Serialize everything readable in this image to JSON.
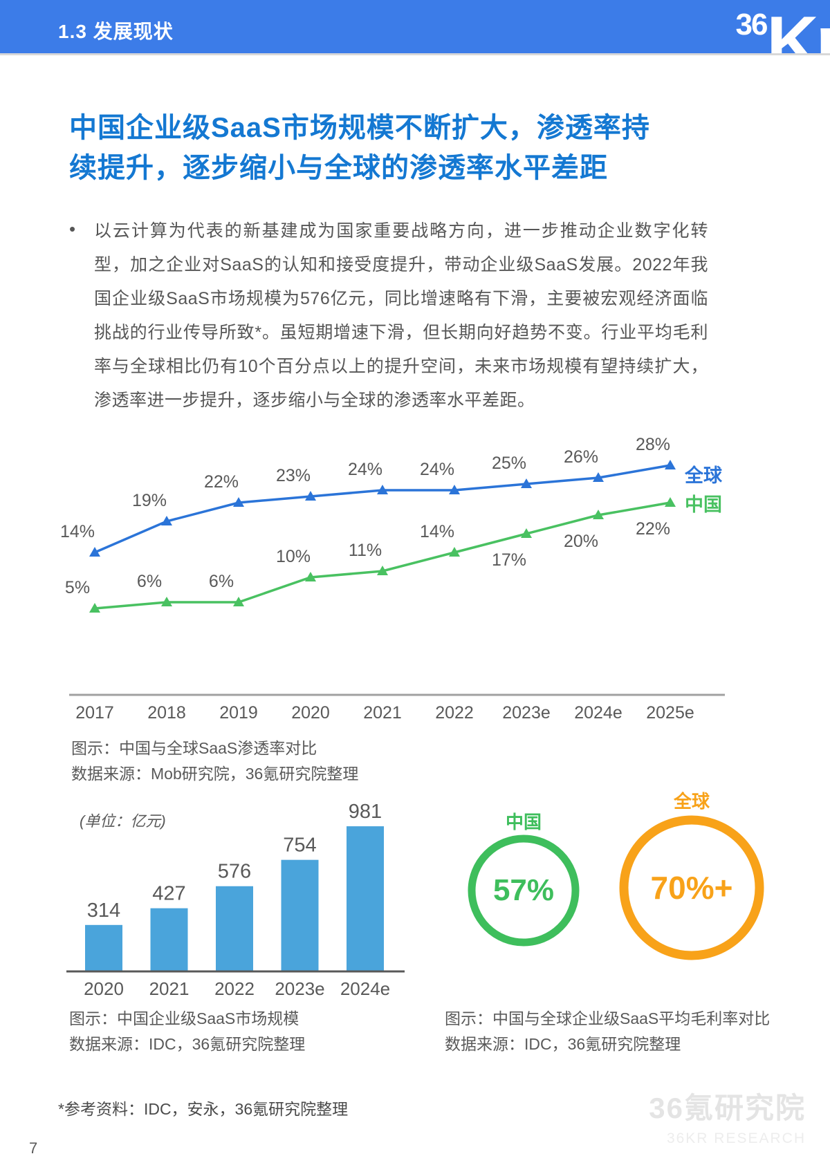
{
  "header": {
    "section_label": "1.3 发展现状",
    "logo_36": "36",
    "logo_kr": "Kr",
    "bg_color": "#3C7CE8"
  },
  "title_lines": [
    "中国企业级SaaS市场规模不断扩大，渗透率持",
    "续提升，逐步缩小与全球的渗透率水平差距"
  ],
  "bullet": {
    "marker": "•",
    "text": "以云计算为代表的新基建成为国家重要战略方向，进一步推动企业数字化转型，加之企业对SaaS的认知和接受度提升，带动企业级SaaS发展。2022年我国企业级SaaS市场规模为576亿元，同比增速略有下滑，主要被宏观经济面临挑战的行业传导所致*。虽短期增速下滑，但长期向好趋势不变。行业平均毛利率与全球相比仍有10个百分点以上的提升空间，未来市场规模有望持续扩大，渗透率进一步提升，逐步缩小与全球的渗透率水平差距。"
  },
  "chart_data": [
    {
      "type": "line",
      "title": "中国与全球SaaS渗透率对比",
      "categories": [
        "2017",
        "2018",
        "2019",
        "2020",
        "2021",
        "2022",
        "2023e",
        "2024e",
        "2025e"
      ],
      "series": [
        {
          "name": "全球",
          "color": "#2B74D8",
          "values": [
            14,
            19,
            22,
            23,
            24,
            24,
            25,
            26,
            28
          ]
        },
        {
          "name": "中国",
          "color": "#49C161",
          "values": [
            5,
            6,
            6,
            10,
            11,
            14,
            17,
            20,
            22
          ]
        }
      ],
      "unit": "%",
      "ylim": [
        0,
        30
      ],
      "grid": false,
      "legend_position": "right",
      "caption": "图示：中国与全球SaaS渗透率对比",
      "source": "数据来源：Mob研究院，36氪研究院整理"
    },
    {
      "type": "bar",
      "title": "中国企业级SaaS市场规模",
      "unit_label": "(单位：亿元)",
      "categories": [
        "2020",
        "2021",
        "2022",
        "2023e",
        "2024e"
      ],
      "values": [
        314,
        427,
        576,
        754,
        981
      ],
      "color": "#4AA4DB",
      "ylim": [
        0,
        1100
      ],
      "grid": false,
      "caption": "图示：中国企业级SaaS市场规模",
      "source": "数据来源：IDC，36氪研究院整理"
    },
    {
      "type": "donut",
      "title": "中国与全球企业级SaaS平均毛利率对比",
      "items": [
        {
          "label": "中国",
          "value": "57%",
          "color": "#3EBE5C"
        },
        {
          "label": "全球",
          "value": "70%+",
          "color": "#F8A219"
        }
      ],
      "caption": "图示：中国与全球企业级SaaS平均毛利率对比",
      "source": "数据来源：IDC，36氪研究院整理"
    }
  ],
  "footnote": "*参考资料：IDC，安永，36氪研究院整理",
  "page_number": "7",
  "watermark": {
    "line1": "36氪研究院",
    "line2": "36KR RESEARCH"
  }
}
